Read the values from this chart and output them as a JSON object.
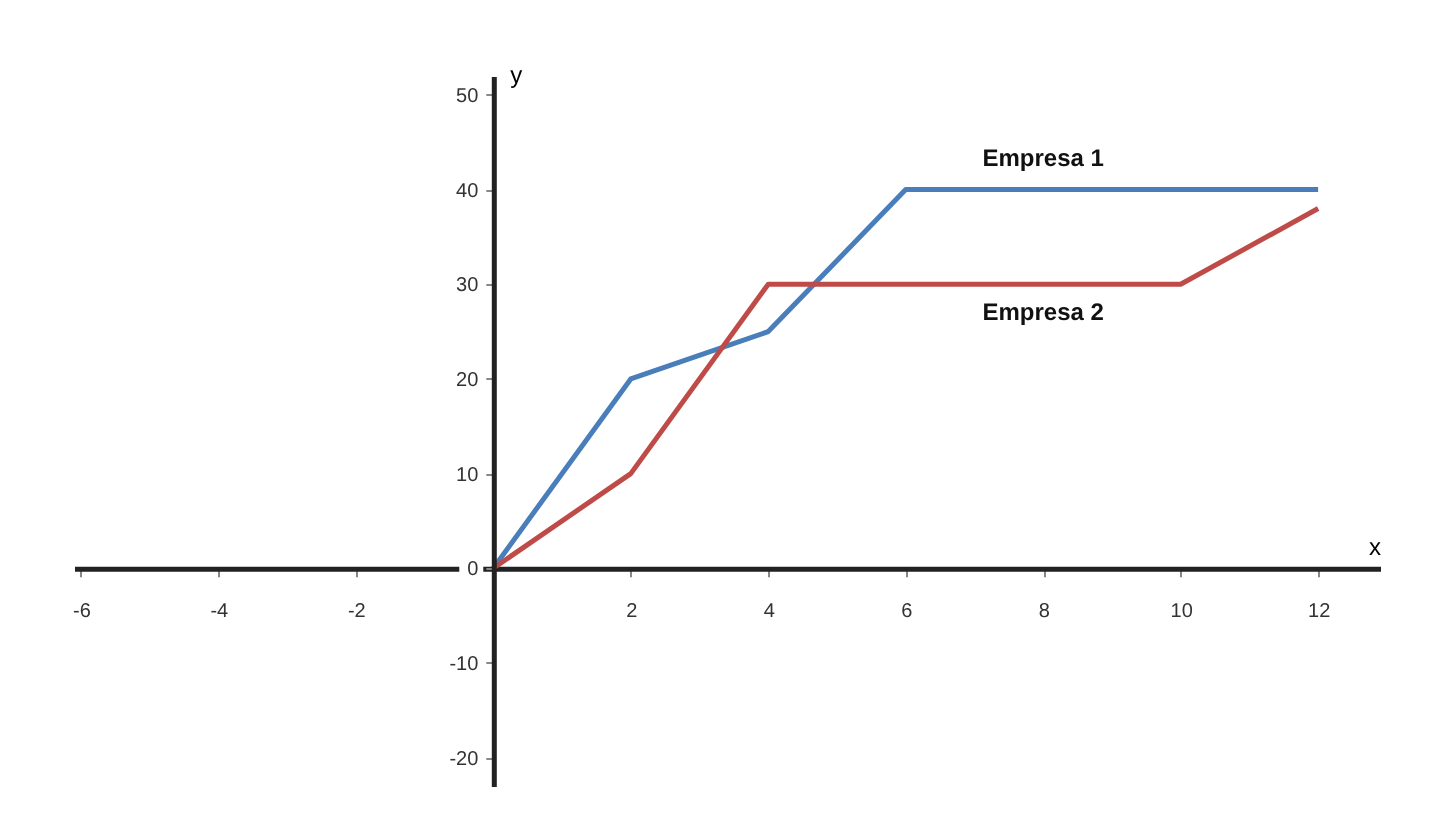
{
  "chart_data": {
    "type": "line",
    "xlabel": "x",
    "ylabel": "y",
    "xlim": [
      -6.1,
      12.9
    ],
    "ylim": [
      -23,
      52
    ],
    "xticks": [
      -6,
      -4,
      -2,
      2,
      4,
      6,
      8,
      10,
      12
    ],
    "yticks": [
      -20,
      -10,
      0,
      10,
      20,
      30,
      40,
      50
    ],
    "x": [
      0,
      2,
      4,
      6,
      10,
      12
    ],
    "series": [
      {
        "name": "Empresa 1",
        "color": "#4a7ebb",
        "values": [
          0,
          20,
          25,
          40,
          40,
          40
        ]
      },
      {
        "name": "Empresa 2",
        "color": "#be4b48",
        "values": [
          0,
          10,
          30,
          30,
          30,
          38
        ]
      }
    ],
    "grid": false,
    "legend": false
  }
}
